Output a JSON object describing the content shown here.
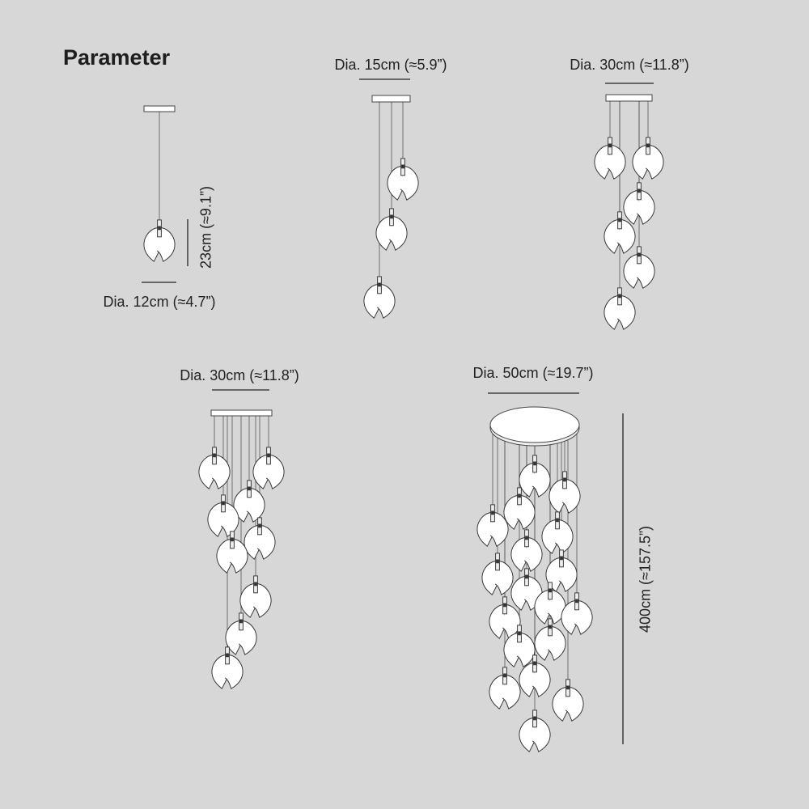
{
  "title": "Parameter",
  "models": [
    {
      "diameter_label": "Dia. 12cm (≈4.7”)",
      "height_label": "23cm (≈9.1”)",
      "lights": 1
    },
    {
      "diameter_label": "Dia. 15cm (≈5.9”)",
      "lights": 3
    },
    {
      "diameter_label": "Dia. 30cm (≈11.8”)",
      "lights": 6
    },
    {
      "diameter_label": "Dia. 30cm (≈11.8”)",
      "lights": 9
    },
    {
      "diameter_label": "Dia. 50cm (≈19.7”)",
      "height_label": "400cm (≈157.5”)",
      "lights": 18
    }
  ],
  "colors": {
    "background": "#d7d7d7",
    "line": "#222222",
    "petal": "#ffffff"
  }
}
